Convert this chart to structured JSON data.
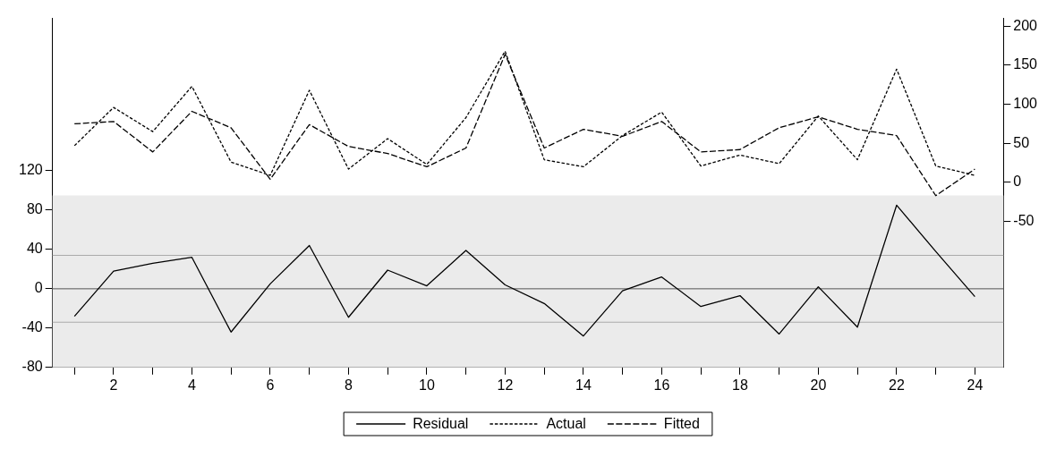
{
  "chart_data": {
    "type": "line",
    "x": [
      1,
      2,
      3,
      4,
      5,
      6,
      7,
      8,
      9,
      10,
      11,
      12,
      13,
      14,
      15,
      16,
      17,
      18,
      19,
      20,
      21,
      22,
      23,
      24
    ],
    "xlim": [
      0.44,
      24.73
    ],
    "xticks": [
      {
        "value": 1,
        "label": null
      },
      2,
      {
        "value": 3,
        "label": null
      },
      4,
      {
        "value": 5,
        "label": null
      },
      6,
      {
        "value": 7,
        "label": null
      },
      8,
      {
        "value": 9,
        "label": null
      },
      10,
      {
        "value": 11,
        "label": null
      },
      12,
      {
        "value": 13,
        "label": null
      },
      14,
      {
        "value": 15,
        "label": null
      },
      16,
      {
        "value": 17,
        "label": null
      },
      18,
      {
        "value": 19,
        "label": null
      },
      20,
      {
        "value": 21,
        "label": null
      },
      22,
      {
        "value": 23,
        "label": null
      },
      24
    ],
    "series": [
      {
        "name": "Residual",
        "color": "#000000",
        "line_style": "solid",
        "values": [
          -28,
          18,
          26,
          32,
          -44,
          5,
          44,
          -29,
          19,
          3,
          39,
          4,
          -15,
          -48,
          -2,
          12,
          -18,
          -7,
          -46,
          2,
          -39,
          85,
          38,
          -8
        ]
      },
      {
        "name": "Actual",
        "color": "#000000",
        "line_style": "dashed",
        "axis": "y2",
        "values": [
          47,
          96,
          65,
          123,
          26,
          9,
          118,
          17,
          56,
          23,
          83,
          168,
          29,
          20,
          60,
          90,
          21,
          35,
          24,
          85,
          29,
          145,
          21,
          9
        ]
      },
      {
        "name": "Fitted",
        "color": "#000000",
        "line_style": "dashed",
        "axis": "y2",
        "values": [
          75,
          78,
          39,
          91,
          70,
          4,
          74,
          46,
          37,
          20,
          44,
          164,
          44,
          68,
          59,
          78,
          39,
          42,
          70,
          84,
          68,
          60,
          -17,
          17
        ]
      }
    ],
    "ylim": [
      -80,
      275
    ],
    "yticks": [
      -80,
      -40,
      0,
      40,
      80,
      120
    ],
    "y2lim": [
      -237,
      210
    ],
    "y2ticks": [
      -50,
      0,
      50,
      100,
      150,
      200
    ],
    "bands": [
      {
        "axis": "y",
        "from": -80,
        "to": 95,
        "color": "#ebebeb"
      }
    ],
    "ref_lines": [
      {
        "axis": "y",
        "value": 0,
        "color": "#555555"
      },
      {
        "axis": "y",
        "value": 34,
        "color": "#aaaaaa"
      },
      {
        "axis": "y",
        "value": -34,
        "color": "#aaaaaa"
      }
    ],
    "grid": false,
    "legend": "bottom",
    "marker": "none"
  }
}
